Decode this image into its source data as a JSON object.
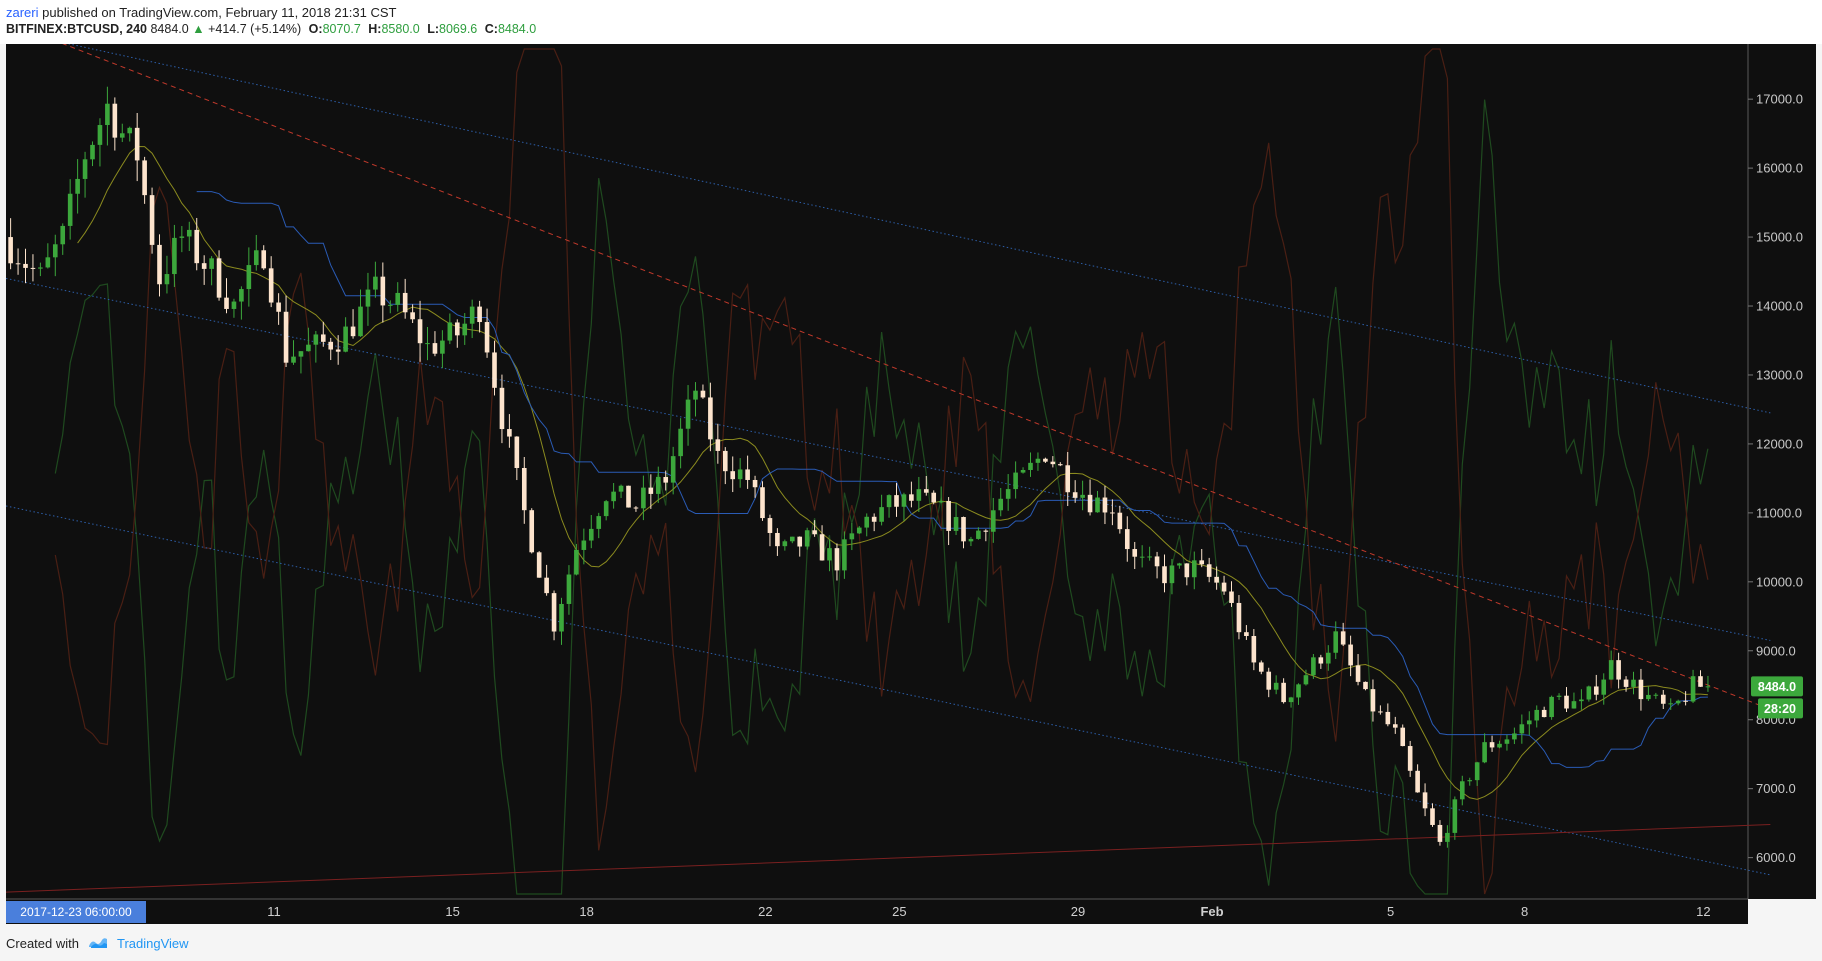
{
  "header": {
    "author": "zareri",
    "published": "published on TradingView.com, February 11, 2018 21:31 CST",
    "symbol": "BITFINEX:BTCUSD, 240",
    "last": "8484.0",
    "change": "+414.7 (+5.14%)",
    "open_label": "O:",
    "open": "8070.7",
    "high_label": "H:",
    "high": "8580.0",
    "low_label": "L:",
    "low": "8069.6",
    "close_label": "C:",
    "close": "8484.0"
  },
  "footer": {
    "created_with": "Created with",
    "brand": "TradingView"
  },
  "colors": {
    "background": "#0f0f0f",
    "candle_up": "#3ca83c",
    "candle_down": "#fde4cd",
    "sma": "#8b8b1f",
    "baseline": "#2a5bb5",
    "channel": "#2d5ea8",
    "resistance": "#c0392b",
    "oscillator_green": "#1f4a1f",
    "oscillator_red": "#4a1f14",
    "price_tag": "#3ca83c",
    "time_tag": "#4a7fdc"
  },
  "chart_data": {
    "type": "candlestick",
    "ylim": [
      5400,
      17800
    ],
    "y_ticks": [
      6000,
      7000,
      8000,
      9000,
      10000,
      11000,
      12000,
      13000,
      14000,
      15000,
      16000,
      17000
    ],
    "y_tick_labels": [
      "6000.0",
      "7000.0",
      "8000.0",
      "9000.0",
      "10000.0",
      "11000.0",
      "12000.0",
      "13000.0",
      "14000.0",
      "15000.0",
      "16000.0",
      "17000.0"
    ],
    "x_range": [
      "2018-01-05T00:00",
      "2018-02-13T00:00"
    ],
    "x_ticks": [
      {
        "label": "8",
        "date": "2018-01-08"
      },
      {
        "label": "11",
        "date": "2018-01-11"
      },
      {
        "label": "15",
        "date": "2018-01-15"
      },
      {
        "label": "18",
        "date": "2018-01-18"
      },
      {
        "label": "22",
        "date": "2018-01-22"
      },
      {
        "label": "25",
        "date": "2018-01-25"
      },
      {
        "label": "29",
        "date": "2018-01-29"
      },
      {
        "label": "Feb",
        "date": "2018-02-01"
      },
      {
        "label": "5",
        "date": "2018-02-05"
      },
      {
        "label": "8",
        "date": "2018-02-08"
      },
      {
        "label": "12",
        "date": "2018-02-12"
      }
    ],
    "cursor_time_label": "2017-12-23 06:00:00",
    "last_price": 8484.0,
    "last_price_label": "8484.0",
    "countdown_label": "28:20",
    "price_path": [
      [
        "2018-01-05T00:00",
        15000
      ],
      [
        "2018-01-05T20:00",
        14400
      ],
      [
        "2018-01-06T08:00",
        15000
      ],
      [
        "2018-01-06T20:00",
        16200
      ],
      [
        "2018-01-07T08:00",
        16900
      ],
      [
        "2018-01-07T16:00",
        16500
      ],
      [
        "2018-01-08T00:00",
        16200
      ],
      [
        "2018-01-08T12:00",
        14400
      ],
      [
        "2018-01-09T00:00",
        15000
      ],
      [
        "2018-01-09T16:00",
        14500
      ],
      [
        "2018-01-10T04:00",
        14000
      ],
      [
        "2018-01-10T20:00",
        14800
      ],
      [
        "2018-01-11T08:00",
        13300
      ],
      [
        "2018-01-12T00:00",
        13400
      ],
      [
        "2018-01-12T16:00",
        13600
      ],
      [
        "2018-01-13T08:00",
        14200
      ],
      [
        "2018-01-13T20:00",
        14000
      ],
      [
        "2018-01-14T12:00",
        13400
      ],
      [
        "2018-01-15T04:00",
        13600
      ],
      [
        "2018-01-15T16:00",
        14000
      ],
      [
        "2018-01-16T04:00",
        12400
      ],
      [
        "2018-01-16T16:00",
        11000
      ],
      [
        "2018-01-17T08:00",
        9400
      ],
      [
        "2018-01-17T20:00",
        10500
      ],
      [
        "2018-01-18T12:00",
        11300
      ],
      [
        "2018-01-19T04:00",
        11100
      ],
      [
        "2018-01-19T20:00",
        11500
      ],
      [
        "2018-01-20T12:00",
        12800
      ],
      [
        "2018-01-21T00:00",
        11800
      ],
      [
        "2018-01-21T16:00",
        11500
      ],
      [
        "2018-01-22T08:00",
        10400
      ],
      [
        "2018-01-23T00:00",
        10600
      ],
      [
        "2018-01-23T16:00",
        10300
      ],
      [
        "2018-01-24T08:00",
        10900
      ],
      [
        "2018-01-24T20:00",
        11100
      ],
      [
        "2018-01-25T12:00",
        11200
      ],
      [
        "2018-01-26T00:00",
        11000
      ],
      [
        "2018-01-26T16:00",
        10600
      ],
      [
        "2018-01-27T08:00",
        11200
      ],
      [
        "2018-01-27T20:00",
        11500
      ],
      [
        "2018-01-28T08:00",
        11900
      ],
      [
        "2018-01-28T20:00",
        11500
      ],
      [
        "2018-01-29T08:00",
        11200
      ],
      [
        "2018-01-29T20:00",
        11100
      ],
      [
        "2018-01-30T08:00",
        10300
      ],
      [
        "2018-01-31T00:00",
        10100
      ],
      [
        "2018-01-31T16:00",
        10200
      ],
      [
        "2018-02-01T08:00",
        9900
      ],
      [
        "2018-02-02T00:00",
        8800
      ],
      [
        "2018-02-02T16:00",
        8300
      ],
      [
        "2018-02-03T08:00",
        8800
      ],
      [
        "2018-02-03T20:00",
        9200
      ],
      [
        "2018-02-04T12:00",
        8300
      ],
      [
        "2018-02-05T04:00",
        7800
      ],
      [
        "2018-02-05T16:00",
        6900
      ],
      [
        "2018-02-06T04:00",
        6200
      ],
      [
        "2018-02-06T16:00",
        7000
      ],
      [
        "2018-02-07T04:00",
        7600
      ],
      [
        "2018-02-07T20:00",
        7800
      ],
      [
        "2018-02-08T08:00",
        8100
      ],
      [
        "2018-02-08T20:00",
        8300
      ],
      [
        "2018-02-09T08:00",
        8200
      ],
      [
        "2018-02-10T00:00",
        8800
      ],
      [
        "2018-02-10T16:00",
        8400
      ],
      [
        "2018-02-11T08:00",
        8100
      ],
      [
        "2018-02-11T20:00",
        8484
      ]
    ],
    "lines": [
      {
        "kind": "channel_upper",
        "style": "dotted",
        "points": [
          [
            "2018-01-05T00:00",
            18000
          ],
          [
            "2018-02-13T12:00",
            12450
          ]
        ]
      },
      {
        "kind": "channel_mid",
        "style": "dotted",
        "points": [
          [
            "2018-01-05T00:00",
            14400
          ],
          [
            "2018-02-13T12:00",
            9150
          ]
        ]
      },
      {
        "kind": "channel_lower",
        "style": "dotted",
        "points": [
          [
            "2018-01-05T00:00",
            11100
          ],
          [
            "2018-02-13T12:00",
            5750
          ]
        ]
      },
      {
        "kind": "resistance",
        "style": "dashed",
        "points": [
          [
            "2018-01-05T12:00",
            18000
          ],
          [
            "2018-02-13T12:00",
            8150
          ]
        ]
      },
      {
        "kind": "support",
        "style": "solid",
        "points": [
          [
            "2018-01-05T00:00",
            5500
          ],
          [
            "2018-02-13T12:00",
            6480
          ]
        ]
      }
    ]
  }
}
